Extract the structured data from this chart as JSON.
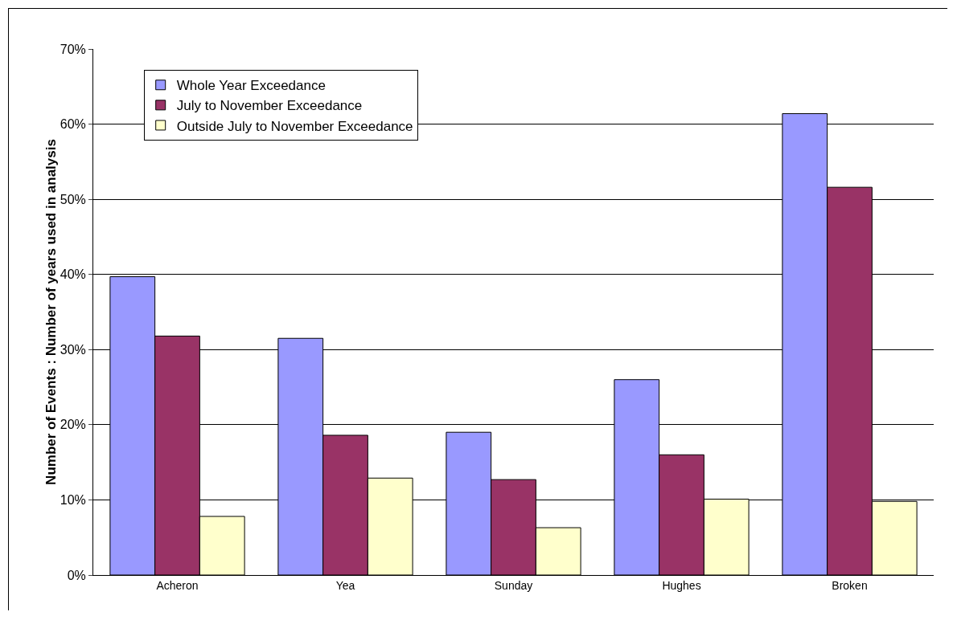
{
  "chart_data": {
    "type": "bar",
    "ylabel": "Number of Events : Number of years used in analysis",
    "categories": [
      "Acheron",
      "Yea",
      "Sunday",
      "Hughes",
      "Broken"
    ],
    "series": [
      {
        "name": "Whole Year Exceedance",
        "color": "#9999ff",
        "values": [
          39.7,
          31.5,
          19.0,
          26.0,
          61.4
        ]
      },
      {
        "name": "July to November Exceedance",
        "color": "#993366",
        "values": [
          31.8,
          18.6,
          12.7,
          16.0,
          51.6
        ]
      },
      {
        "name": "Outside July to November Exceedance",
        "color": "#ffffcc",
        "values": [
          7.8,
          12.9,
          6.3,
          10.1,
          9.8
        ]
      }
    ],
    "ylim": [
      0,
      70
    ],
    "yticks": [
      {
        "value": 0,
        "label": "0%"
      },
      {
        "value": 10,
        "label": "10%"
      },
      {
        "value": 20,
        "label": "20%"
      },
      {
        "value": 30,
        "label": "30%"
      },
      {
        "value": 40,
        "label": "40%"
      },
      {
        "value": 50,
        "label": "50%"
      },
      {
        "value": 60,
        "label": "60%"
      },
      {
        "value": 70,
        "label": "70%"
      }
    ],
    "grid": "y",
    "legend": "top left"
  }
}
